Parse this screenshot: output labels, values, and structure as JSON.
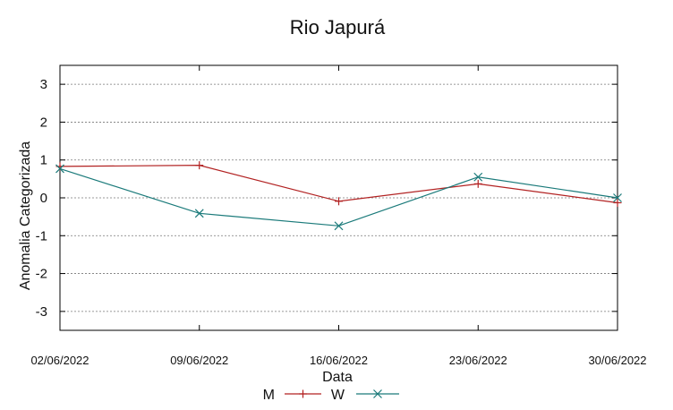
{
  "chart_data": {
    "type": "line",
    "title": "Rio Japurá",
    "xlabel": "Data",
    "ylabel": "Anomalia Categorizada",
    "categories": [
      "02/06/2022",
      "09/06/2022",
      "16/06/2022",
      "23/06/2022",
      "30/06/2022"
    ],
    "yticks": [
      "3",
      "2",
      "1",
      "0",
      "-1",
      "-2",
      "-3"
    ],
    "ylim": [
      -3.5,
      3.5
    ],
    "grid": true,
    "legend_position": "bottom-center",
    "series": [
      {
        "name": "M",
        "color": "#b22222",
        "marker": "plus",
        "values": [
          0.83,
          0.86,
          -0.09,
          0.37,
          -0.13
        ]
      },
      {
        "name": "W",
        "color": "#1a7a7a",
        "marker": "cross",
        "values": [
          0.77,
          -0.41,
          -0.74,
          0.55,
          0.0
        ]
      }
    ]
  }
}
